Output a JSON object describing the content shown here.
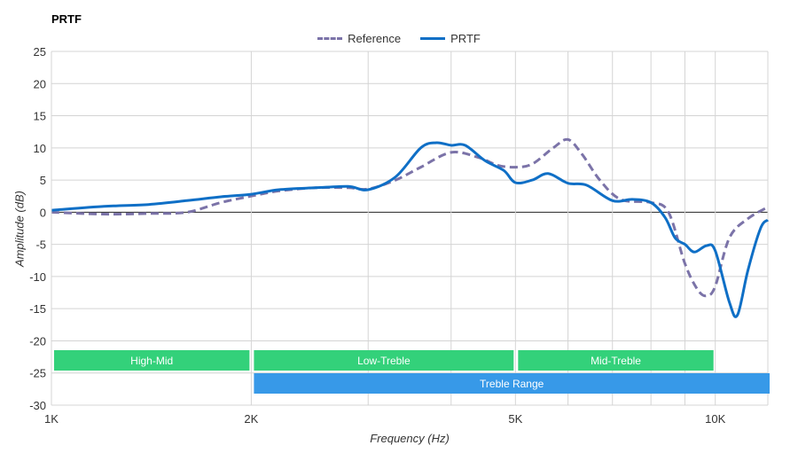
{
  "chart_data": {
    "type": "line",
    "title": "PRTF",
    "xlabel": "Frequency (Hz)",
    "ylabel": "Amplitude (dB)",
    "x_scale": "log",
    "xlim": [
      1000,
      12000
    ],
    "ylim": [
      -30,
      25
    ],
    "x_ticks": [
      {
        "value": 1000,
        "label": "1K"
      },
      {
        "value": 2000,
        "label": "2K"
      },
      {
        "value": 5000,
        "label": "5K"
      },
      {
        "value": 10000,
        "label": "10K"
      }
    ],
    "x_gridlines": [
      1000,
      2000,
      3000,
      4000,
      5000,
      6000,
      7000,
      8000,
      9000,
      10000,
      12000
    ],
    "y_ticks": [
      25,
      20,
      15,
      10,
      5,
      0,
      -5,
      -10,
      -15,
      -20,
      -25,
      -30
    ],
    "grid": true,
    "legend_position": "top-center",
    "series": [
      {
        "name": "Reference",
        "style": "dashed",
        "color": "#7b73a8",
        "points": [
          [
            1000,
            0
          ],
          [
            1200,
            -0.3
          ],
          [
            1400,
            -0.2
          ],
          [
            1600,
            0
          ],
          [
            1800,
            1.5
          ],
          [
            2000,
            2.5
          ],
          [
            2200,
            3.3
          ],
          [
            2500,
            3.8
          ],
          [
            2800,
            3.8
          ],
          [
            3000,
            3.6
          ],
          [
            3300,
            5
          ],
          [
            3600,
            7
          ],
          [
            4000,
            9.3
          ],
          [
            4400,
            8.5
          ],
          [
            4700,
            7.3
          ],
          [
            5000,
            7
          ],
          [
            5300,
            7.5
          ],
          [
            5700,
            10
          ],
          [
            6000,
            11.3
          ],
          [
            6300,
            9
          ],
          [
            6700,
            5
          ],
          [
            7200,
            2
          ],
          [
            8000,
            1.5
          ],
          [
            8500,
            0
          ],
          [
            9000,
            -8
          ],
          [
            9400,
            -12
          ],
          [
            9700,
            -13
          ],
          [
            10000,
            -11.5
          ],
          [
            10500,
            -4
          ],
          [
            11200,
            -1
          ],
          [
            12000,
            0.8
          ]
        ]
      },
      {
        "name": "PRTF",
        "style": "solid",
        "color": "#0f6fc6",
        "points": [
          [
            1000,
            0.3
          ],
          [
            1200,
            0.9
          ],
          [
            1400,
            1.2
          ],
          [
            1600,
            1.8
          ],
          [
            1800,
            2.4
          ],
          [
            2000,
            2.8
          ],
          [
            2200,
            3.5
          ],
          [
            2500,
            3.8
          ],
          [
            2800,
            4
          ],
          [
            3000,
            3.5
          ],
          [
            3300,
            5.5
          ],
          [
            3600,
            10
          ],
          [
            3800,
            10.8
          ],
          [
            4000,
            10.4
          ],
          [
            4200,
            10.4
          ],
          [
            4500,
            8
          ],
          [
            4800,
            6.5
          ],
          [
            5000,
            4.6
          ],
          [
            5300,
            5
          ],
          [
            5600,
            6
          ],
          [
            6000,
            4.5
          ],
          [
            6400,
            4.2
          ],
          [
            7000,
            1.8
          ],
          [
            7500,
            2
          ],
          [
            8000,
            1.5
          ],
          [
            8400,
            -0.8
          ],
          [
            8700,
            -4
          ],
          [
            9000,
            -5
          ],
          [
            9300,
            -6.2
          ],
          [
            9700,
            -5.2
          ],
          [
            10000,
            -6
          ],
          [
            10500,
            -14
          ],
          [
            10800,
            -16
          ],
          [
            11200,
            -9
          ],
          [
            11700,
            -2.5
          ],
          [
            12000,
            -1.2
          ]
        ]
      }
    ],
    "ranges": [
      {
        "label": "High-Mid",
        "color": "#33d17a",
        "start": 1000,
        "end": 2000,
        "row": 0
      },
      {
        "label": "Low-Treble",
        "color": "#33d17a",
        "start": 2000,
        "end": 5000,
        "row": 0
      },
      {
        "label": "Mid-Treble",
        "color": "#33d17a",
        "start": 5000,
        "end": 10000,
        "row": 0
      },
      {
        "label": "Treble Range",
        "color": "#3799e8",
        "start": 2000,
        "end": 12000,
        "row": 1
      }
    ]
  }
}
